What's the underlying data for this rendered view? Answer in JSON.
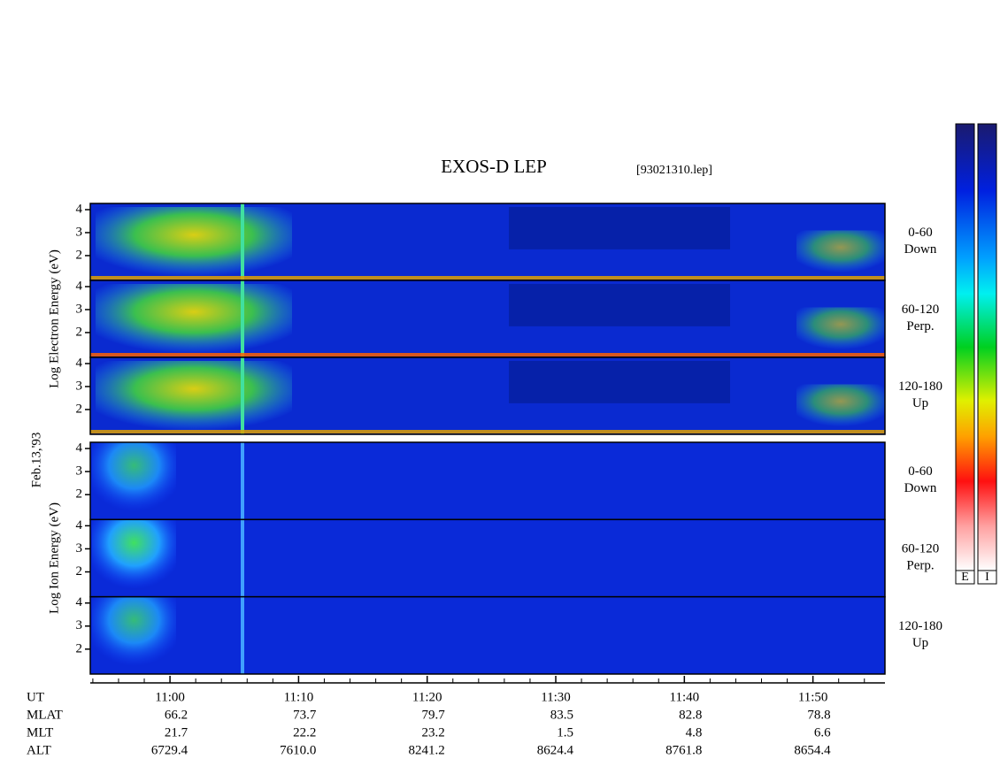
{
  "chart_data": {
    "type": "spectrogram",
    "title": "EXOS-D LEP",
    "subtitle": "[93021310.lep]",
    "date_label": "Feb.13,'93",
    "xlim": [
      653.8,
      715.6
    ],
    "xticks": [
      {
        "value": 660,
        "label": "11:00"
      },
      {
        "value": 670,
        "label": "11:10"
      },
      {
        "value": 680,
        "label": "11:20"
      },
      {
        "value": 690,
        "label": "11:30"
      },
      {
        "value": 700,
        "label": "11:40"
      },
      {
        "value": 710,
        "label": "11:50"
      }
    ],
    "ylim": [
      0.92,
      4.27
    ],
    "yticks": [
      2,
      3,
      4
    ],
    "groups": [
      {
        "ylabel": "Log Electron Energy (eV)",
        "panels": [
          {
            "angle": "0-60",
            "direction": "Down"
          },
          {
            "angle": "60-120",
            "direction": "Perp."
          },
          {
            "angle": "120-180",
            "direction": "Up"
          }
        ]
      },
      {
        "ylabel": "Log Ion Energy (eV)",
        "panels": [
          {
            "angle": "0-60",
            "direction": "Down"
          },
          {
            "angle": "60-120",
            "direction": "Perp."
          },
          {
            "angle": "120-180",
            "direction": "Up"
          }
        ]
      }
    ],
    "colorbars": [
      "E",
      "I"
    ],
    "orbit": {
      "time_label": "UT",
      "rows": [
        {
          "label": "MLAT",
          "values": [
            "66.2",
            "73.7",
            "79.7",
            "83.5",
            "82.8",
            "78.8"
          ]
        },
        {
          "label": "MLT",
          "values": [
            "21.7",
            "22.2",
            "23.2",
            "1.5",
            "4.8",
            "6.6"
          ]
        },
        {
          "label": "ALT",
          "values": [
            "6729.4",
            "7610.0",
            "8241.2",
            "8624.4",
            "8761.8",
            "8654.4"
          ]
        }
      ]
    }
  }
}
